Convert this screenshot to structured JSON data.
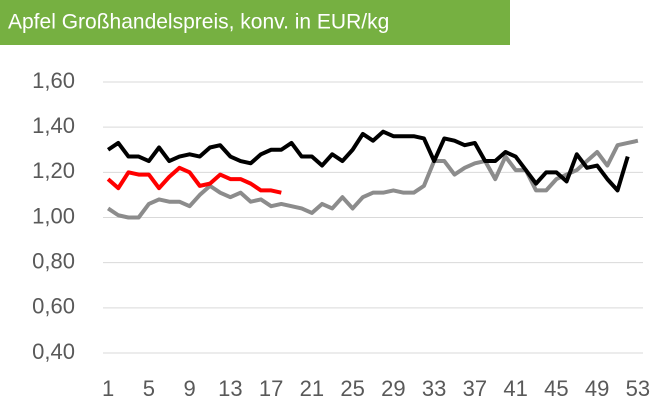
{
  "chart_data": {
    "type": "line",
    "title": "Apfel Großhandelspreis, konv. in EUR/kg",
    "x": [
      1,
      2,
      3,
      4,
      5,
      6,
      7,
      8,
      9,
      10,
      11,
      12,
      13,
      14,
      15,
      16,
      17,
      18,
      19,
      20,
      21,
      22,
      23,
      24,
      25,
      26,
      27,
      28,
      29,
      30,
      31,
      32,
      33,
      34,
      35,
      36,
      37,
      38,
      39,
      40,
      41,
      42,
      43,
      44,
      45,
      46,
      47,
      48,
      49,
      50,
      51,
      52,
      53
    ],
    "xlim": [
      0.5,
      53.5
    ],
    "xticks": [
      1,
      5,
      9,
      13,
      17,
      21,
      25,
      29,
      33,
      37,
      41,
      45,
      49,
      53
    ],
    "ylim": [
      0.4,
      1.6
    ],
    "yticks": [
      {
        "value": 0.4,
        "label": "0,40"
      },
      {
        "value": 0.6,
        "label": "0,60"
      },
      {
        "value": 0.8,
        "label": "0,80"
      },
      {
        "value": 1.0,
        "label": "1,00"
      },
      {
        "value": 1.2,
        "label": "1,20"
      },
      {
        "value": 1.4,
        "label": "1,40"
      },
      {
        "value": 1.6,
        "label": "1,60"
      }
    ],
    "grid": true,
    "series": [
      {
        "color": "#8c8c8c",
        "values": [
          1.04,
          1.01,
          1.0,
          1.0,
          1.06,
          1.08,
          1.07,
          1.07,
          1.05,
          1.1,
          1.14,
          1.11,
          1.09,
          1.11,
          1.07,
          1.08,
          1.05,
          1.06,
          1.05,
          1.04,
          1.02,
          1.06,
          1.04,
          1.09,
          1.04,
          1.09,
          1.11,
          1.11,
          1.12,
          1.11,
          1.11,
          1.14,
          1.25,
          1.25,
          1.19,
          1.22,
          1.24,
          1.25,
          1.17,
          1.27,
          1.21,
          1.21,
          1.12,
          1.12,
          1.17,
          1.19,
          1.21,
          1.25,
          1.29,
          1.23,
          1.32,
          1.33,
          1.34
        ]
      },
      {
        "color": "#000000",
        "values": [
          1.3,
          1.33,
          1.27,
          1.27,
          1.25,
          1.31,
          1.25,
          1.27,
          1.28,
          1.27,
          1.31,
          1.32,
          1.27,
          1.25,
          1.24,
          1.28,
          1.3,
          1.3,
          1.33,
          1.27,
          1.27,
          1.23,
          1.28,
          1.25,
          1.3,
          1.37,
          1.34,
          1.38,
          1.36,
          1.36,
          1.36,
          1.35,
          1.25,
          1.35,
          1.34,
          1.32,
          1.33,
          1.25,
          1.25,
          1.29,
          1.27,
          1.21,
          1.15,
          1.2,
          1.2,
          1.16,
          1.28,
          1.22,
          1.23,
          1.17,
          1.12,
          1.27,
          null
        ]
      },
      {
        "color": "#ff0000",
        "values": [
          1.17,
          1.13,
          1.2,
          1.19,
          1.19,
          1.13,
          1.18,
          1.22,
          1.2,
          1.14,
          1.15,
          1.19,
          1.17,
          1.17,
          1.15,
          1.12,
          1.12,
          1.11,
          null,
          null,
          null,
          null,
          null,
          null,
          null,
          null,
          null,
          null,
          null,
          null,
          null,
          null,
          null,
          null,
          null,
          null,
          null,
          null,
          null,
          null,
          null,
          null,
          null,
          null,
          null,
          null,
          null,
          null,
          null,
          null,
          null,
          null,
          null
        ]
      }
    ]
  }
}
